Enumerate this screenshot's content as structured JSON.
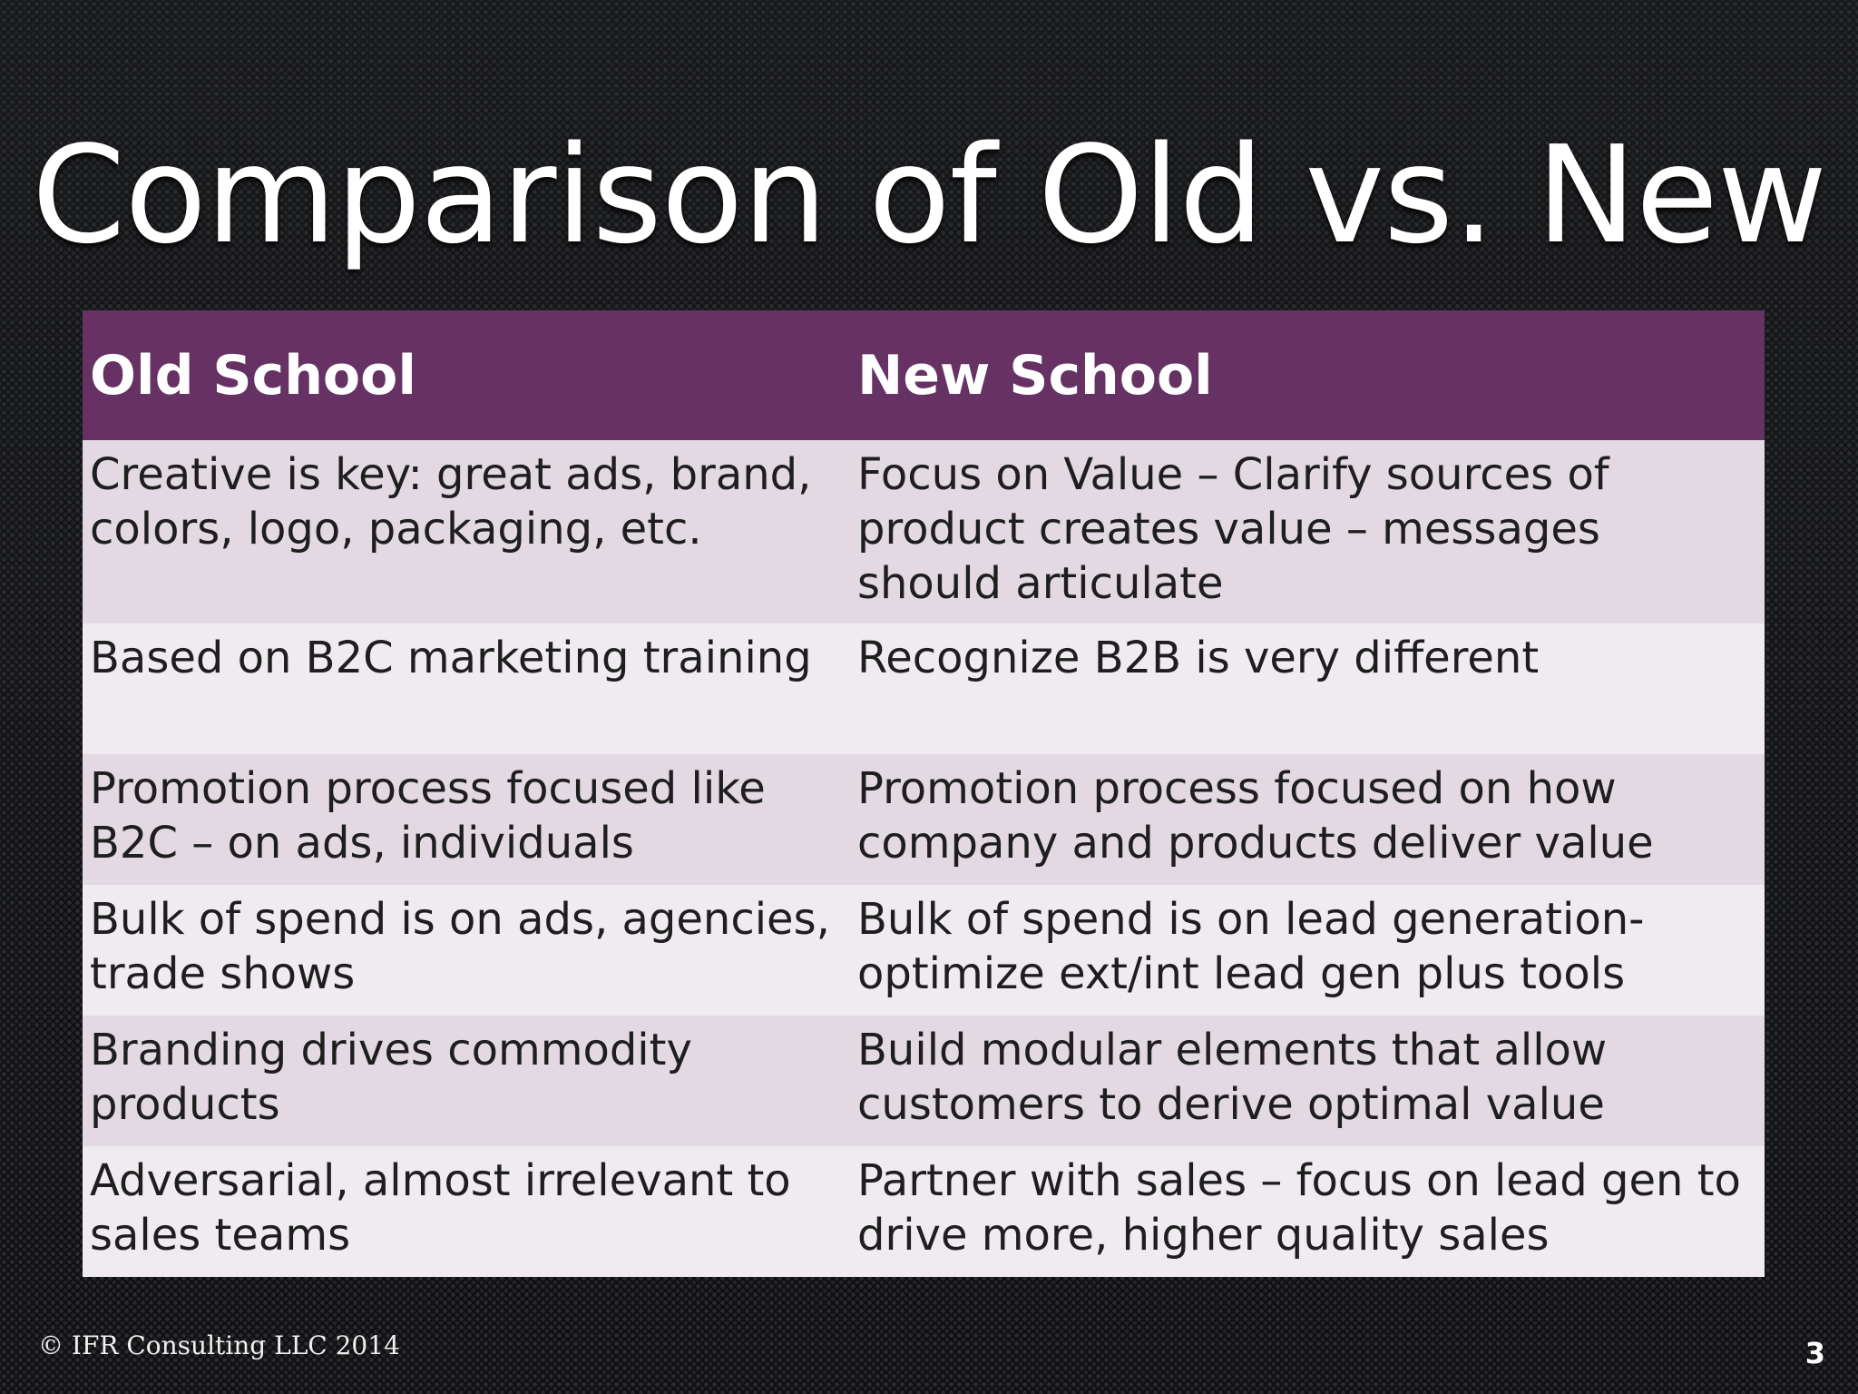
{
  "slide": {
    "title": "Comparison of Old vs. New",
    "footer": "© IFR Consulting LLC 2014",
    "page_number": "3"
  },
  "table": {
    "headers": [
      "Old School",
      "New School"
    ],
    "rows": [
      [
        "Creative is key: great ads, brand, colors, logo, packaging, etc.",
        "Focus on Value – Clarify sources of product creates value – messages should articulate"
      ],
      [
        "Based on B2C marketing training",
        "Recognize B2B is very different"
      ],
      [
        "Promotion process focused like B2C – on ads, individuals",
        "Promotion process focused on how company and products deliver value"
      ],
      [
        "Bulk of spend is on ads, agencies, trade shows",
        "Bulk of spend is on lead generation- optimize ext/int lead gen plus tools"
      ],
      [
        "Branding drives commodity products",
        "Build modular elements that allow customers to derive optimal value"
      ],
      [
        "Adversarial, almost irrelevant to sales teams",
        "Partner with sales – focus on lead gen to drive more, higher quality sales"
      ]
    ]
  },
  "colors": {
    "header_bg": "#663264",
    "row_dark": "#e2d9e2",
    "row_light": "#efebf0",
    "background": "#141416"
  }
}
